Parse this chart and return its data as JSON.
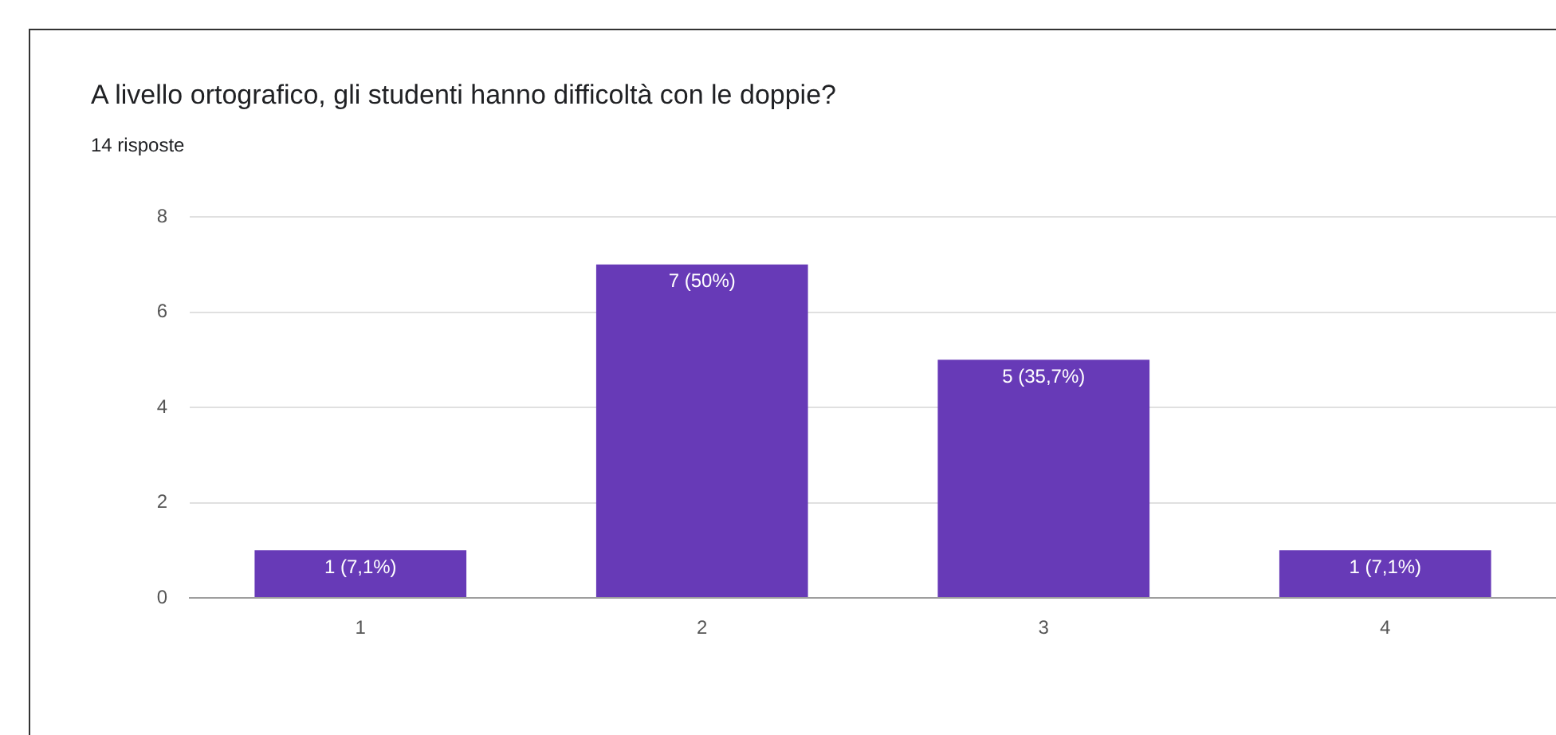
{
  "chart_data": {
    "type": "bar",
    "title": "A livello ortografico, gli studenti hanno difficoltà con le doppie?",
    "subtitle": "14 risposte",
    "categories": [
      "1",
      "2",
      "3",
      "4"
    ],
    "values": [
      1,
      7,
      5,
      1
    ],
    "value_labels": [
      "1 (7,1%)",
      "7 (50%)",
      "5 (35,7%)",
      "1 (7,1%)"
    ],
    "color": "#673ab7",
    "ylim": [
      0,
      8
    ],
    "yticks": [
      0,
      2,
      4,
      6,
      8
    ],
    "grid": "y",
    "legend": false
  }
}
